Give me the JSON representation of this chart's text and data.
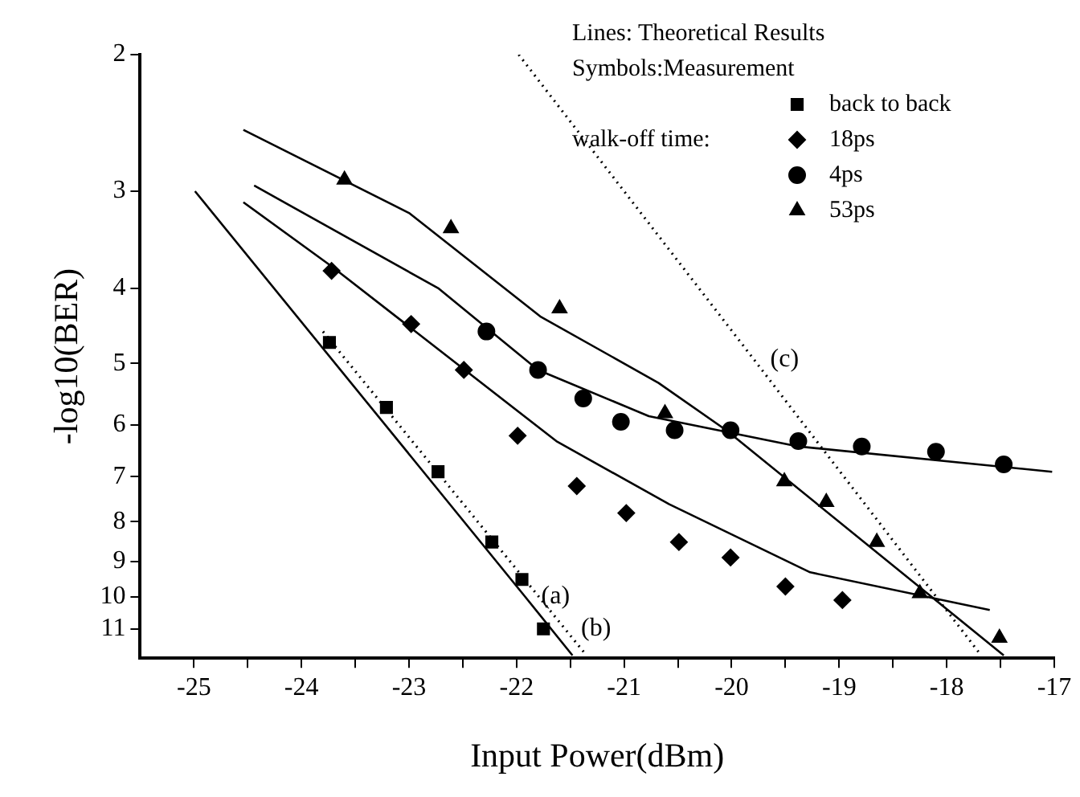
{
  "chart_data": {
    "type": "scatter",
    "xlabel": "Input Power(dBm)",
    "ylabel": "-log10(BER)",
    "legend_title": "walk-off time:",
    "annotations": [
      "Lines:  Theoretical Results",
      "Symbols:Measurement"
    ],
    "xlim": [
      -25.5,
      -17
    ],
    "xticks": [
      -25,
      {
        "value": -24.5,
        "label": null
      },
      -24,
      {
        "value": -23.5,
        "label": null
      },
      -23,
      {
        "value": -22.5,
        "label": null
      },
      -22,
      {
        "value": -21.5,
        "label": null
      },
      -21,
      {
        "value": -20.5,
        "label": null
      },
      -20,
      {
        "value": -19.5,
        "label": null
      },
      -19,
      {
        "value": -18.5,
        "label": null
      },
      -18,
      {
        "value": -17.5,
        "label": null
      },
      -17
    ],
    "ylim": [
      12,
      2
    ],
    "yticks": [
      2,
      3,
      4,
      5,
      6,
      7,
      8,
      9,
      10,
      11
    ],
    "log": "y",
    "grid": false,
    "legend": "top right",
    "series": [
      {
        "name": "back to back",
        "marker": "square",
        "color": "#000000",
        "x": [
          -23.74,
          -23.21,
          -22.73,
          -22.23,
          -21.95,
          -21.75
        ],
        "values": [
          4.7,
          5.7,
          6.9,
          8.5,
          9.5,
          11
        ]
      },
      {
        "name": "18ps",
        "marker": "diamond",
        "color": "#000000",
        "x": [
          -23.72,
          -22.98,
          -22.49,
          -21.99,
          -21.44,
          -20.98,
          -20.49,
          -20.01,
          -19.5,
          -18.97
        ],
        "values": [
          3.8,
          4.45,
          5.1,
          6.2,
          7.2,
          7.8,
          8.5,
          8.9,
          9.7,
          10.1
        ]
      },
      {
        "name": "4ps",
        "marker": "circle",
        "color": "#000000",
        "x": [
          -22.28,
          -21.8,
          -21.38,
          -21.03,
          -20.53,
          -20.01,
          -19.38,
          -18.79,
          -18.1,
          -17.47
        ],
        "values": [
          4.55,
          5.1,
          5.55,
          5.95,
          6.1,
          6.1,
          6.3,
          6.4,
          6.5,
          6.75
        ]
      },
      {
        "name": "53ps",
        "marker": "triangle",
        "color": "#000000",
        "x": [
          -23.6,
          -22.61,
          -21.6,
          -20.62,
          -19.51,
          -19.12,
          -18.65,
          -18.25,
          -17.51
        ],
        "values": [
          2.9,
          3.35,
          4.25,
          5.8,
          7.1,
          7.55,
          8.5,
          9.9,
          11.3
        ]
      },
      {
        "name": "(a)",
        "type": "line",
        "marker": "none",
        "line_style": "solid",
        "color": "#000000",
        "x": [
          -24.99,
          -21.92,
          -21.48
        ],
        "values": [
          3,
          10,
          11.9
        ]
      },
      {
        "name": "(b)",
        "type": "line",
        "marker": "none",
        "line_style": "dotted",
        "color": "#000000",
        "x": [
          -23.8,
          -21.55,
          -21.35
        ],
        "values": [
          4.55,
          11,
          11.9
        ]
      },
      {
        "name": "(c)",
        "type": "line",
        "marker": "none",
        "line_style": "dotted",
        "color": "#000000",
        "x": [
          -21.98,
          -19.79,
          -17.68
        ],
        "values": [
          2,
          4.95,
          11.9
        ]
      },
      {
        "type": "line",
        "marker": "none",
        "line_style": "solid",
        "color": "#000000",
        "x": [
          -24.54,
          -23,
          -21.78,
          -20.68,
          -20.05,
          -17.47
        ],
        "values": [
          2.5,
          3.2,
          4.35,
          5.3,
          6.1,
          11.9
        ]
      },
      {
        "type": "line",
        "marker": "none",
        "line_style": "solid",
        "color": "#000000",
        "x": [
          -24.44,
          -22.73,
          -21.8,
          -20.77,
          -19.38,
          -17.02
        ],
        "values": [
          2.95,
          4.0,
          5.1,
          5.85,
          6.4,
          6.9
        ]
      },
      {
        "type": "line",
        "marker": "none",
        "line_style": "solid",
        "color": "#000000",
        "x": [
          -24.54,
          -23.72,
          -21.63,
          -20.58,
          -19.27,
          -17.6
        ],
        "values": [
          3.1,
          3.75,
          6.3,
          7.6,
          9.3,
          10.4
        ]
      }
    ]
  }
}
